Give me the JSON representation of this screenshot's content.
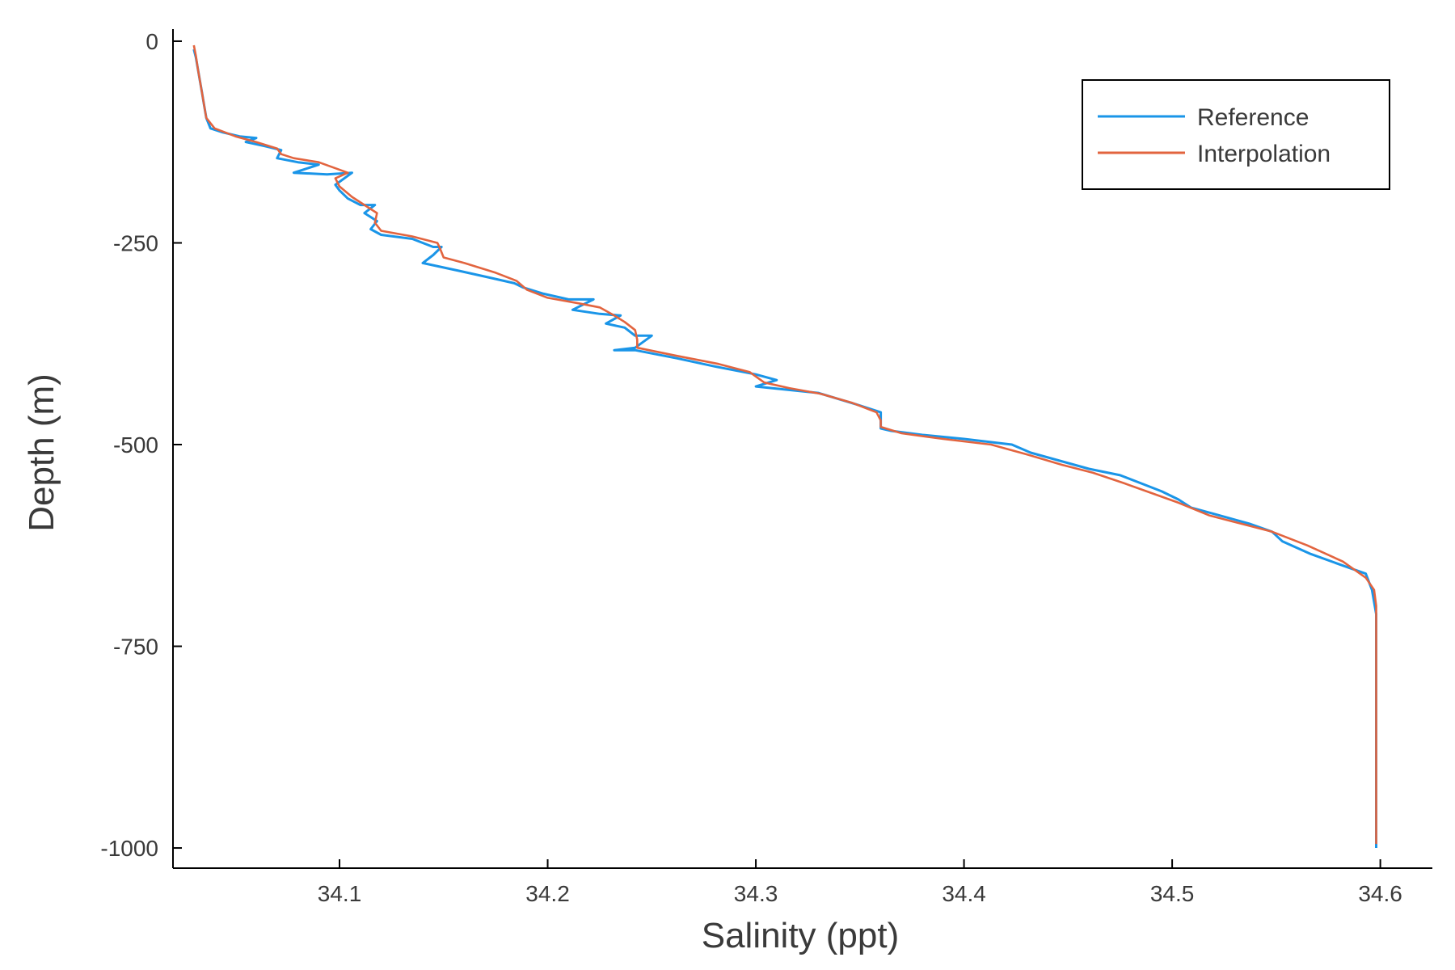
{
  "chart_data": {
    "type": "line",
    "xlabel": "Salinity (ppt)",
    "ylabel": "Depth (m)",
    "xlim": [
      34.02,
      34.625
    ],
    "ylim": [
      -1025,
      15
    ],
    "xticks": [
      34.1,
      34.2,
      34.3,
      34.4,
      34.5,
      34.6
    ],
    "xtick_labels": [
      "34.1",
      "34.2",
      "34.3",
      "34.4",
      "34.5",
      "34.6"
    ],
    "yticks": [
      0,
      -250,
      -500,
      -750,
      -1000
    ],
    "ytick_labels": [
      "0",
      "-250",
      "-500",
      "-750",
      "-1000"
    ],
    "grid": false,
    "legend_position": "top-right",
    "series": [
      {
        "name": "Reference",
        "color": "#1a95e8",
        "x": [
          34.03,
          34.031,
          34.032,
          34.033,
          34.034,
          34.035,
          34.036,
          34.038,
          34.044,
          34.052,
          34.06,
          34.055,
          34.064,
          34.072,
          34.07,
          34.08,
          34.09,
          34.078,
          34.094,
          34.106,
          34.098,
          34.1,
          34.104,
          34.11,
          34.117,
          34.112,
          34.118,
          34.115,
          34.12,
          34.135,
          34.145,
          34.149,
          34.145,
          34.14,
          34.158,
          34.172,
          34.184,
          34.188,
          34.198,
          34.21,
          34.222,
          34.212,
          34.225,
          34.235,
          34.228,
          34.237,
          34.242,
          34.246,
          34.25,
          34.242,
          34.232,
          34.242,
          34.262,
          34.28,
          34.3,
          34.31,
          34.3,
          34.315,
          34.33,
          34.348,
          34.36,
          34.36,
          34.365,
          34.38,
          34.4,
          34.423,
          34.432,
          34.446,
          34.46,
          34.475,
          34.485,
          34.495,
          34.503,
          34.509,
          34.523,
          34.537,
          34.548,
          34.553,
          34.566,
          34.582,
          34.593,
          34.596,
          34.597,
          34.598,
          34.598
        ],
        "y": [
          -10,
          -20,
          -35,
          -50,
          -65,
          -80,
          -95,
          -108,
          -113,
          -118,
          -120,
          -125,
          -130,
          -135,
          -145,
          -150,
          -153,
          -163,
          -165,
          -163,
          -178,
          -185,
          -195,
          -203,
          -203,
          -213,
          -223,
          -233,
          -240,
          -245,
          -255,
          -255,
          -265,
          -275,
          -285,
          -293,
          -300,
          -305,
          -313,
          -320,
          -320,
          -333,
          -338,
          -340,
          -350,
          -355,
          -365,
          -365,
          -365,
          -380,
          -383,
          -383,
          -393,
          -403,
          -413,
          -420,
          -428,
          -432,
          -436,
          -450,
          -460,
          -480,
          -483,
          -488,
          -493,
          -500,
          -510,
          -520,
          -530,
          -538,
          -548,
          -558,
          -568,
          -578,
          -588,
          -598,
          -608,
          -620,
          -635,
          -650,
          -660,
          -680,
          -695,
          -710,
          -1000
        ]
      },
      {
        "name": "Interpolation",
        "color": "#e2643f",
        "x": [
          34.03,
          34.031,
          34.032,
          34.033,
          34.034,
          34.035,
          34.036,
          34.04,
          34.05,
          34.06,
          34.07,
          34.072,
          34.078,
          34.09,
          34.104,
          34.098,
          34.1,
          34.106,
          34.112,
          34.118,
          34.117,
          34.12,
          34.135,
          34.147,
          34.148,
          34.15,
          34.16,
          34.175,
          34.185,
          34.19,
          34.2,
          34.215,
          34.225,
          34.232,
          34.237,
          34.242,
          34.243,
          34.243,
          34.262,
          34.282,
          34.297,
          34.304,
          34.316,
          34.331,
          34.346,
          34.358,
          34.36,
          34.36,
          34.37,
          34.39,
          34.413,
          34.43,
          34.447,
          34.462,
          34.477,
          34.49,
          34.503,
          34.518,
          34.533,
          34.548,
          34.565,
          34.582,
          34.593,
          34.597,
          34.598,
          34.598
        ],
        "y": [
          -5,
          -18,
          -35,
          -50,
          -65,
          -80,
          -95,
          -108,
          -118,
          -125,
          -133,
          -140,
          -145,
          -150,
          -163,
          -170,
          -180,
          -193,
          -203,
          -213,
          -225,
          -235,
          -242,
          -250,
          -255,
          -268,
          -275,
          -287,
          -297,
          -308,
          -318,
          -325,
          -330,
          -340,
          -348,
          -358,
          -370,
          -380,
          -390,
          -400,
          -410,
          -423,
          -430,
          -437,
          -448,
          -460,
          -470,
          -478,
          -486,
          -493,
          -500,
          -512,
          -525,
          -535,
          -548,
          -560,
          -572,
          -588,
          -598,
          -608,
          -625,
          -645,
          -665,
          -680,
          -700,
          -995
        ]
      }
    ]
  }
}
